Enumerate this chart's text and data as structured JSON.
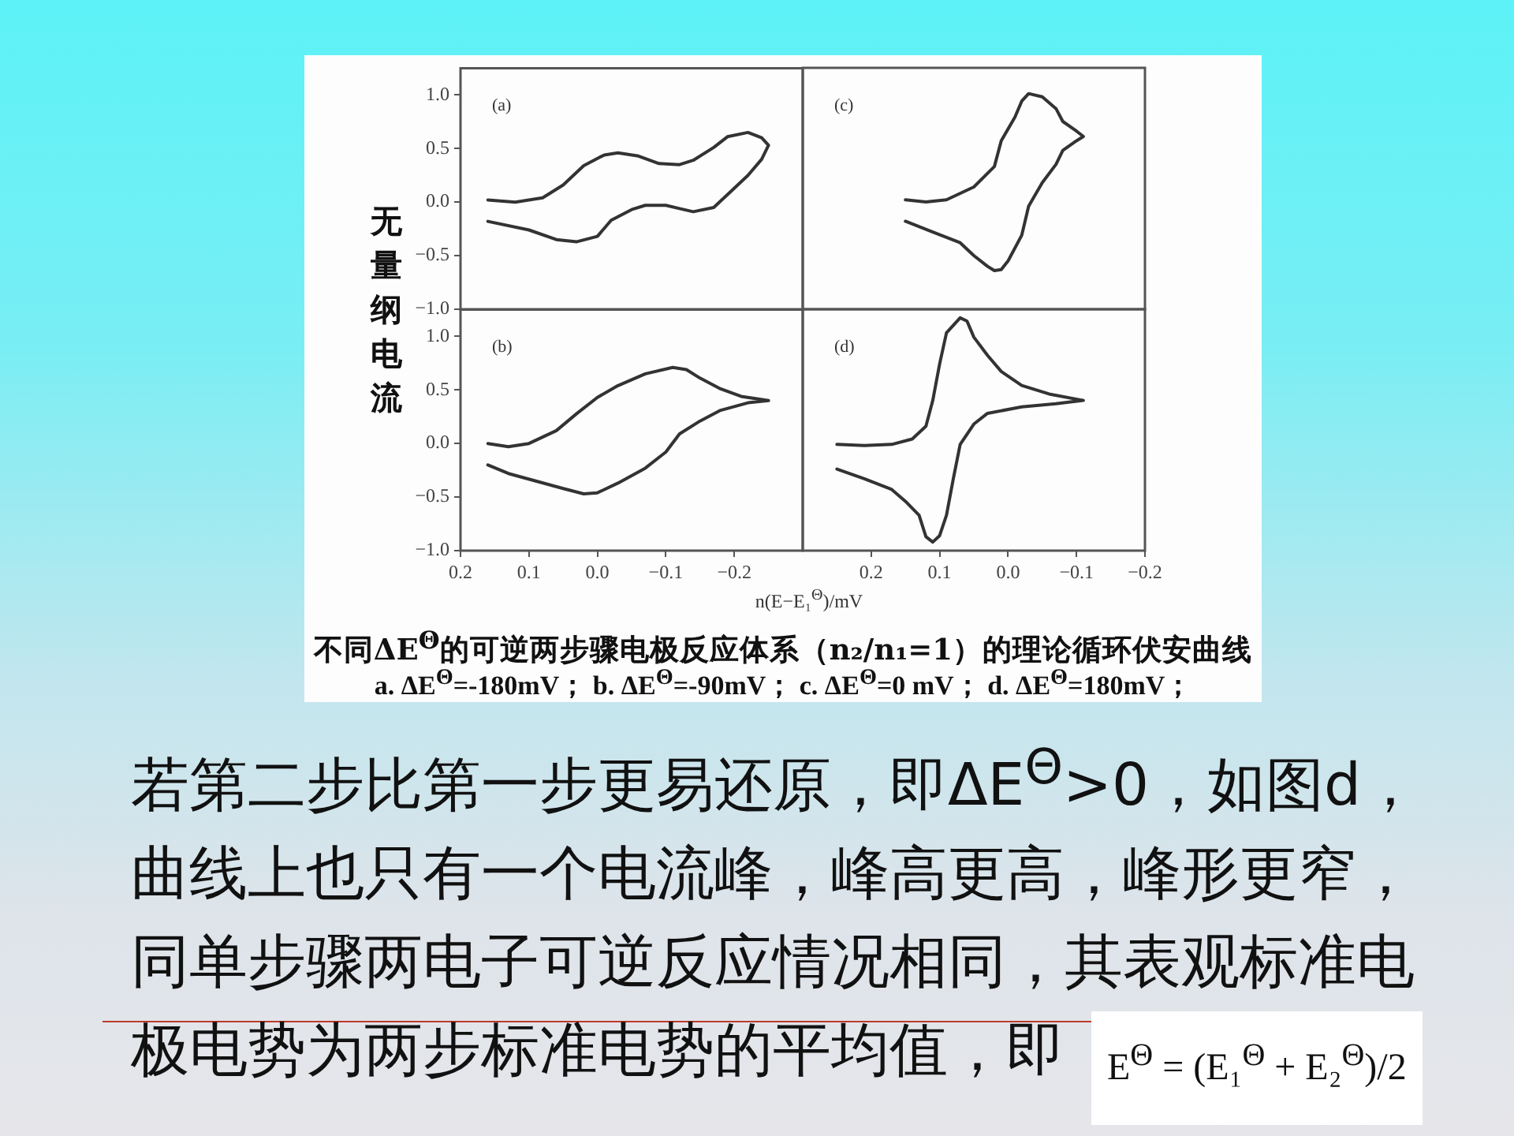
{
  "chart_data": [
    {
      "type": "line",
      "annotations": [
        "(a)"
      ],
      "ylabel": "无量纲电流",
      "xlim": [
        0.2,
        -0.3
      ],
      "ylim": [
        -1,
        1.25
      ],
      "yticks": [
        {
          "value": 1,
          "label": "1.0"
        },
        {
          "value": 0.5,
          "label": "0.5"
        },
        {
          "value": 0,
          "label": "0.0"
        },
        {
          "value": -0.5,
          "label": "−0.5"
        },
        {
          "value": -1,
          "label": "−1.0"
        }
      ],
      "tick_labels": "y",
      "series": [
        {
          "color": "#333333",
          "x": [
            0.16,
            0.12,
            0.08,
            0.05,
            0.02,
            -0.01,
            -0.03,
            -0.06,
            -0.09,
            -0.12,
            -0.14,
            -0.17,
            -0.19,
            -0.22,
            -0.24,
            -0.25,
            -0.24,
            -0.22,
            -0.19,
            -0.17,
            -0.14,
            -0.12,
            -0.1,
            -0.07,
            -0.05,
            -0.02,
            0,
            0.03,
            0.06,
            0.1,
            0.16
          ],
          "values": [
            0.02,
            0,
            0.04,
            0.16,
            0.34,
            0.44,
            0.46,
            0.43,
            0.36,
            0.35,
            0.39,
            0.51,
            0.61,
            0.65,
            0.6,
            0.53,
            0.4,
            0.25,
            0.07,
            -0.05,
            -0.09,
            -0.06,
            -0.03,
            -0.03,
            -0.07,
            -0.17,
            -0.32,
            -0.37,
            -0.35,
            -0.26,
            -0.18
          ]
        }
      ]
    },
    {
      "type": "line",
      "annotations": [
        "(c)"
      ],
      "xlim": [
        0.3,
        -0.2
      ],
      "ylim": [
        -1,
        1.25
      ],
      "tick_labels": false,
      "series": [
        {
          "color": "#333333",
          "x": [
            0.15,
            0.12,
            0.09,
            0.05,
            0.02,
            0.01,
            -0.01,
            -0.02,
            -0.03,
            -0.05,
            -0.07,
            -0.08,
            -0.1,
            -0.11,
            -0.1,
            -0.08,
            -0.07,
            -0.05,
            -0.03,
            -0.02,
            0,
            0.01,
            0.02,
            0.03,
            0.05,
            0.07,
            0.11,
            0.15
          ],
          "values": [
            0.02,
            0,
            0.02,
            0.14,
            0.33,
            0.57,
            0.79,
            0.94,
            1.01,
            0.98,
            0.87,
            0.75,
            0.66,
            0.61,
            0.57,
            0.48,
            0.35,
            0.18,
            -0.04,
            -0.31,
            -0.55,
            -0.63,
            -0.64,
            -0.6,
            -0.5,
            -0.38,
            -0.28,
            -0.18
          ]
        }
      ]
    },
    {
      "type": "line",
      "annotations": [
        "(b)"
      ],
      "xlabel": "n(E−E₁$^{Θ}$)/mV",
      "xlim": [
        0.2,
        -0.3
      ],
      "ylim": [
        -1,
        1.25
      ],
      "xticks": [
        {
          "value": 0.2,
          "label": "0.2"
        },
        {
          "value": 0.1,
          "label": "0.1"
        },
        {
          "value": 0,
          "label": "0.0"
        },
        {
          "value": -0.1,
          "label": "−0.1"
        },
        {
          "value": -0.2,
          "label": "−0.2"
        }
      ],
      "yticks": [
        {
          "value": 1,
          "label": "1.0"
        },
        {
          "value": 0.5,
          "label": "0.5"
        },
        {
          "value": 0,
          "label": "0.0"
        },
        {
          "value": -0.5,
          "label": "−0.5"
        },
        {
          "value": -1,
          "label": "−1.0"
        }
      ],
      "series": [
        {
          "color": "#333333",
          "x": [
            0.16,
            0.13,
            0.1,
            0.06,
            0.03,
            0,
            -0.03,
            -0.07,
            -0.11,
            -0.13,
            -0.15,
            -0.18,
            -0.21,
            -0.25,
            -0.22,
            -0.18,
            -0.15,
            -0.12,
            -0.1,
            -0.07,
            -0.03,
            0,
            0.02,
            0.05,
            0.09,
            0.13,
            0.16
          ],
          "values": [
            0,
            -0.03,
            0,
            0.12,
            0.28,
            0.43,
            0.54,
            0.65,
            0.71,
            0.69,
            0.61,
            0.51,
            0.44,
            0.4,
            0.38,
            0.31,
            0.21,
            0.09,
            -0.08,
            -0.23,
            -0.37,
            -0.46,
            -0.47,
            -0.42,
            -0.35,
            -0.28,
            -0.2
          ]
        }
      ]
    },
    {
      "type": "line",
      "annotations": [
        "(d)"
      ],
      "xlim": [
        0.3,
        -0.2
      ],
      "ylim": [
        -1,
        1.25
      ],
      "xticks": [
        {
          "value": 0.2,
          "label": "0.2"
        },
        {
          "value": 0.1,
          "label": "0.1"
        },
        {
          "value": 0,
          "label": "0.0"
        },
        {
          "value": -0.1,
          "label": "−0.1"
        },
        {
          "value": -0.2,
          "label": "−0.2"
        }
      ],
      "tick_labels": "x",
      "series": [
        {
          "color": "#333333",
          "x": [
            0.25,
            0.21,
            0.17,
            0.14,
            0.12,
            0.11,
            0.1,
            0.09,
            0.07,
            0.06,
            0.05,
            0.03,
            0.01,
            -0.02,
            -0.06,
            -0.11,
            -0.07,
            -0.02,
            0.03,
            0.05,
            0.07,
            0.08,
            0.09,
            0.1,
            0.11,
            0.12,
            0.13,
            0.15,
            0.17,
            0.21,
            0.25
          ],
          "values": [
            -0.01,
            -0.02,
            -0.01,
            0.04,
            0.16,
            0.4,
            0.74,
            1.03,
            1.17,
            1.14,
            0.99,
            0.82,
            0.67,
            0.54,
            0.46,
            0.4,
            0.37,
            0.34,
            0.28,
            0.18,
            -0.01,
            -0.33,
            -0.67,
            -0.86,
            -0.92,
            -0.87,
            -0.67,
            -0.54,
            -0.43,
            -0.33,
            -0.24
          ]
        }
      ]
    },
    {
      "type": "other",
      "title": "不同ΔE$^{Θ}$的可逆两步骤电极反应体系（n₂/n₁=1）的理论循环伏安曲线",
      "subtitle": "a. ΔE$^{Θ}$=-180mV； b. ΔE$^{Θ}$=-90mV； c. ΔE$^{Θ}$=0 mV； d. ΔE$^{Θ}$=180mV；",
      "annotations": [
        "若第二步比第一步更易还原，即ΔE$^{Θ}$>0，如图d，",
        "曲线上也只有一个电流峰，峰高更高，峰形更窄，",
        "同单步骤两电子可逆反应情况相同，其表观标准电",
        "极电势为两步标准电势的平均值，即",
        "E$^{Θ}$ = (E₁$^{Θ}$ + E₂$^{Θ}$)/2"
      ]
    }
  ]
}
